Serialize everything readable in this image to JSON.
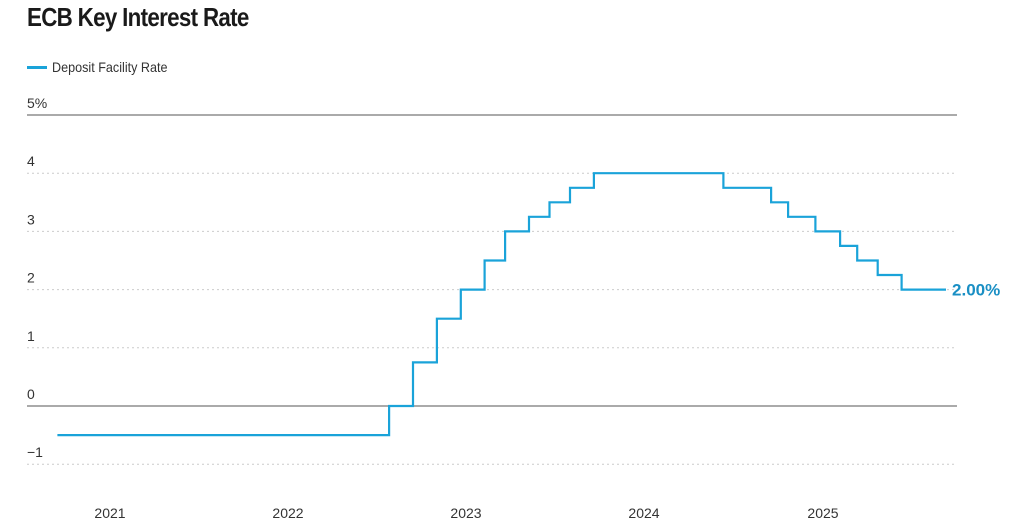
{
  "title": "ECB Key Interest Rate",
  "colors": {
    "line": "#1aa3d9",
    "end_label": "#1a8fc4",
    "grid": "#cccccc",
    "axis": "#555555"
  },
  "chart_data": {
    "type": "line",
    "step": true,
    "title": "ECB Key Interest Rate",
    "xlabel": "",
    "ylabel": "",
    "legend": "top-left",
    "grid": true,
    "xlim": [
      "2020-07-01",
      "2025-12-31"
    ],
    "ylim": [
      -1.5,
      5
    ],
    "x_ticks": [
      "2021",
      "2022",
      "2023",
      "2024",
      "2025"
    ],
    "y_ticks": [
      "5%",
      "4",
      "3",
      "2",
      "1",
      "0",
      "−1"
    ],
    "end_label": "2.00%",
    "series": [
      {
        "name": "Deposit Facility Rate",
        "points": [
          [
            "2020-09-15",
            -0.5
          ],
          [
            "2022-07-27",
            0.0
          ],
          [
            "2022-09-14",
            0.75
          ],
          [
            "2022-11-02",
            1.5
          ],
          [
            "2022-12-21",
            2.0
          ],
          [
            "2023-02-08",
            2.5
          ],
          [
            "2023-03-22",
            3.0
          ],
          [
            "2023-05-10",
            3.25
          ],
          [
            "2023-06-21",
            3.5
          ],
          [
            "2023-08-02",
            3.75
          ],
          [
            "2023-09-20",
            4.0
          ],
          [
            "2024-06-12",
            3.75
          ],
          [
            "2024-09-18",
            3.5
          ],
          [
            "2024-10-23",
            3.25
          ],
          [
            "2024-12-18",
            3.0
          ],
          [
            "2025-02-05",
            2.75
          ],
          [
            "2025-03-12",
            2.5
          ],
          [
            "2025-04-23",
            2.25
          ],
          [
            "2025-06-11",
            2.0
          ],
          [
            "2025-09-10",
            2.0
          ]
        ]
      }
    ]
  }
}
